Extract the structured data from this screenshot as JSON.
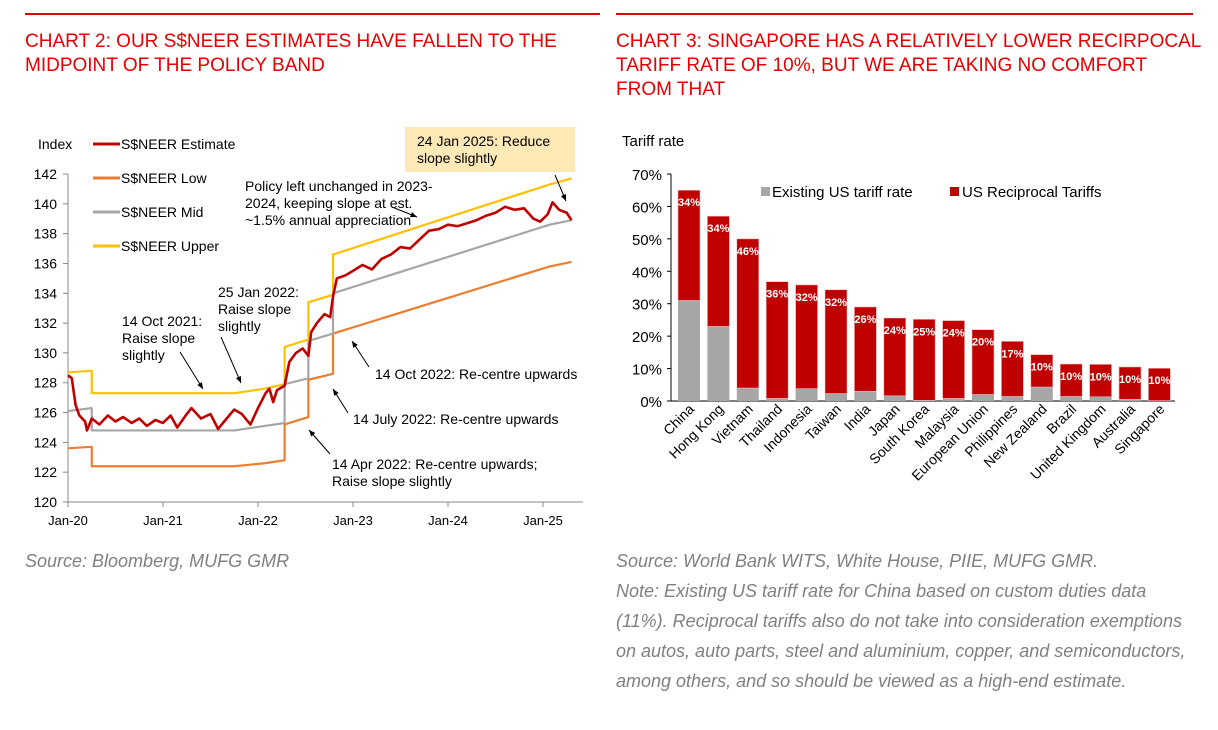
{
  "left": {
    "title": "Chart 2: Our S$NEER estimates have fallen to the midpoint of the policy band",
    "source": "Source: Bloomberg, MUFG GMR"
  },
  "right": {
    "title": "Chart 3: Singapore has a relatively lower recirpocal tariff rate of 10%, but we are taking no comfort from that",
    "source": "Source: World Bank WITS, White House, PIIE, MUFG GMR.",
    "note": "Note: Existing US tariff rate for China based on custom duties data (11%). Reciprocal tariffs also do not take into consideration exemptions on autos, auto parts, steel and aluminium, copper, and semiconductors, among others, and so should be viewed as a high-end estimate."
  },
  "colors": {
    "red": "#c00000",
    "orange": "#ed7d31",
    "grey": "#a6a6a6",
    "yellow": "#ffc000",
    "accent": "#e60000",
    "annot_bg": "#fde9b6"
  },
  "chart_data": [
    {
      "type": "line",
      "ylabel": "Index",
      "ylim": [
        120,
        142
      ],
      "yticks": [
        "120",
        "122",
        "124",
        "126",
        "128",
        "130",
        "132",
        "134",
        "136",
        "138",
        "140",
        "142"
      ],
      "xticks": [
        "Jan-20",
        "Jan-21",
        "Jan-22",
        "Jan-23",
        "Jan-24",
        "Jan-25"
      ],
      "x_units": "years since Jan-2020",
      "series": [
        {
          "name": "S$NEER Estimate",
          "color": "#c00000",
          "points": [
            [
              0,
              128.5
            ],
            [
              0.04,
              128.3
            ],
            [
              0.08,
              126.5
            ],
            [
              0.12,
              125.8
            ],
            [
              0.18,
              125.4
            ],
            [
              0.2,
              124.8
            ],
            [
              0.25,
              125.6
            ],
            [
              0.33,
              125.2
            ],
            [
              0.42,
              125.8
            ],
            [
              0.5,
              125.4
            ],
            [
              0.58,
              125.7
            ],
            [
              0.67,
              125.3
            ],
            [
              0.75,
              125.6
            ],
            [
              0.83,
              125.1
            ],
            [
              0.92,
              125.5
            ],
            [
              1.0,
              125.3
            ],
            [
              1.08,
              125.8
            ],
            [
              1.15,
              125.0
            ],
            [
              1.25,
              125.9
            ],
            [
              1.3,
              126.3
            ],
            [
              1.4,
              125.6
            ],
            [
              1.5,
              125.9
            ],
            [
              1.58,
              124.9
            ],
            [
              1.67,
              125.6
            ],
            [
              1.75,
              126.2
            ],
            [
              1.83,
              125.9
            ],
            [
              1.92,
              125.2
            ],
            [
              2.0,
              126.3
            ],
            [
              2.08,
              127.3
            ],
            [
              2.12,
              127.6
            ],
            [
              2.16,
              126.7
            ],
            [
              2.2,
              127.5
            ],
            [
              2.28,
              127.8
            ],
            [
              2.33,
              129.4
            ],
            [
              2.4,
              130.0
            ],
            [
              2.47,
              130.3
            ],
            [
              2.53,
              129.8
            ],
            [
              2.56,
              131.4
            ],
            [
              2.62,
              132.0
            ],
            [
              2.7,
              132.6
            ],
            [
              2.76,
              132.4
            ],
            [
              2.79,
              133.8
            ],
            [
              2.83,
              135.0
            ],
            [
              2.92,
              135.2
            ],
            [
              3.0,
              135.5
            ],
            [
              3.1,
              135.9
            ],
            [
              3.2,
              135.6
            ],
            [
              3.3,
              136.3
            ],
            [
              3.4,
              136.6
            ],
            [
              3.5,
              137.1
            ],
            [
              3.6,
              137.0
            ],
            [
              3.7,
              137.6
            ],
            [
              3.8,
              138.2
            ],
            [
              3.9,
              138.3
            ],
            [
              4.0,
              138.6
            ],
            [
              4.1,
              138.5
            ],
            [
              4.2,
              138.7
            ],
            [
              4.3,
              138.9
            ],
            [
              4.4,
              139.2
            ],
            [
              4.5,
              139.4
            ],
            [
              4.6,
              139.8
            ],
            [
              4.7,
              139.6
            ],
            [
              4.8,
              139.7
            ],
            [
              4.9,
              139.0
            ],
            [
              4.97,
              138.8
            ],
            [
              5.05,
              139.3
            ],
            [
              5.1,
              140.1
            ],
            [
              5.17,
              139.6
            ],
            [
              5.25,
              139.4
            ],
            [
              5.3,
              138.9
            ]
          ]
        },
        {
          "name": "S$NEER Low",
          "color": "#ed7d31",
          "points": [
            [
              0,
              123.6
            ],
            [
              0.25,
              123.7
            ],
            [
              0.25,
              122.4
            ],
            [
              1.75,
              122.4
            ],
            [
              2.07,
              122.6
            ],
            [
              2.28,
              122.8
            ],
            [
              2.28,
              125.2
            ],
            [
              2.53,
              125.7
            ],
            [
              2.53,
              128.2
            ],
            [
              2.79,
              128.6
            ],
            [
              2.79,
              131.3
            ],
            [
              5.07,
              135.8
            ],
            [
              5.3,
              136.1
            ]
          ]
        },
        {
          "name": "S$NEER Mid",
          "color": "#a6a6a6",
          "points": [
            [
              0,
              126.1
            ],
            [
              0.25,
              126.3
            ],
            [
              0.25,
              124.8
            ],
            [
              1.75,
              124.8
            ],
            [
              2.07,
              125.1
            ],
            [
              2.28,
              125.3
            ],
            [
              2.28,
              127.9
            ],
            [
              2.53,
              128.3
            ],
            [
              2.53,
              130.8
            ],
            [
              2.79,
              131.3
            ],
            [
              2.79,
              134.0
            ],
            [
              5.07,
              138.6
            ],
            [
              5.3,
              138.9
            ]
          ]
        },
        {
          "name": "S$NEER Upper",
          "color": "#ffc000",
          "points": [
            [
              0,
              128.7
            ],
            [
              0.25,
              128.8
            ],
            [
              0.25,
              127.3
            ],
            [
              1.75,
              127.3
            ],
            [
              2.07,
              127.6
            ],
            [
              2.28,
              127.9
            ],
            [
              2.28,
              130.4
            ],
            [
              2.53,
              130.9
            ],
            [
              2.53,
              133.4
            ],
            [
              2.79,
              133.9
            ],
            [
              2.79,
              136.6
            ],
            [
              5.07,
              141.3
            ],
            [
              5.3,
              141.7
            ]
          ]
        }
      ],
      "annotations": [
        {
          "text": [
            "24 Jan 2025: Reduce",
            "slope slightly"
          ],
          "highlight": true
        },
        {
          "text": [
            "Policy left unchanged in 2023-",
            "2024, keeping slope at est.",
            "~1.5% annual appreciation"
          ]
        },
        {
          "text": [
            "25 Jan 2022:",
            "Raise slope",
            "slightly"
          ]
        },
        {
          "text": [
            "14 Oct 2021:",
            "Raise slope",
            "slightly"
          ]
        },
        {
          "text": [
            "14 Oct 2022: Re-centre upwards"
          ]
        },
        {
          "text": [
            "14 July 2022: Re-centre upwards"
          ]
        },
        {
          "text": [
            "14 Apr 2022: Re-centre upwards;",
            "Raise slope slightly"
          ]
        }
      ]
    },
    {
      "type": "bar",
      "stacked": true,
      "ylabel": "Tariff rate",
      "ylim": [
        0,
        70
      ],
      "yticks": [
        "0%",
        "10%",
        "20%",
        "30%",
        "40%",
        "50%",
        "60%",
        "70%"
      ],
      "categories": [
        "China",
        "Hong Kong",
        "Vietnam",
        "Thailand",
        "Indonesia",
        "Taiwan",
        "India",
        "Japan",
        "South Korea",
        "Malaysia",
        "European Union",
        "Philippines",
        "New Zealand",
        "Brazil",
        "United Kingdom",
        "Australia",
        "Singapore"
      ],
      "series": [
        {
          "name": "Existing US tariff rate",
          "color": "#a6a6a6",
          "values": [
            31,
            23,
            4,
            0.8,
            3.8,
            2.3,
            3,
            1.6,
            0.2,
            0.8,
            2,
            1.4,
            4.3,
            1.4,
            1.3,
            0.5,
            0.1
          ]
        },
        {
          "name": "US Reciprocal Tariffs",
          "color": "#c00000",
          "values": [
            34,
            34,
            46,
            36,
            32,
            32,
            26,
            24,
            25,
            24,
            20,
            17,
            10,
            10,
            10,
            10,
            10
          ],
          "labels": [
            "34%",
            "34%",
            "46%",
            "36%",
            "32%",
            "32%",
            "26%",
            "24%",
            "25%",
            "24%",
            "20%",
            "17%",
            "10%",
            "10%",
            "10%",
            "10%",
            "10%"
          ]
        }
      ],
      "legend": "top"
    }
  ]
}
